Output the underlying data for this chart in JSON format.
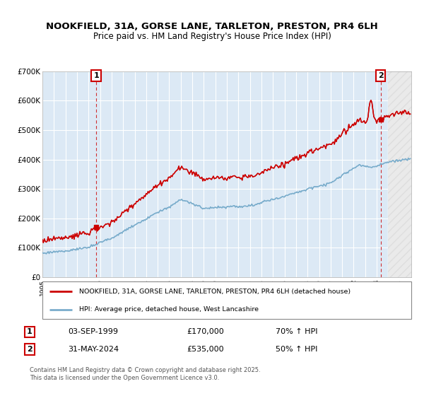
{
  "title": "NOOKFIELD, 31A, GORSE LANE, TARLETON, PRESTON, PR4 6LH",
  "subtitle": "Price paid vs. HM Land Registry's House Price Index (HPI)",
  "title_fontsize": 9.5,
  "subtitle_fontsize": 8.5,
  "sale1_date": "03-SEP-1999",
  "sale1_price": 170000,
  "sale1_label": "1",
  "sale1_hpi": "70% ↑ HPI",
  "sale2_date": "31-MAY-2024",
  "sale2_price": 535000,
  "sale2_label": "2",
  "sale2_hpi": "50% ↑ HPI",
  "red_color": "#cc0000",
  "blue_color": "#7aadcc",
  "bg_color": "#dce9f5",
  "grid_color": "#ffffff",
  "legend_label_red": "NOOKFIELD, 31A, GORSE LANE, TARLETON, PRESTON, PR4 6LH (detached house)",
  "legend_label_blue": "HPI: Average price, detached house, West Lancashire",
  "footer": "Contains HM Land Registry data © Crown copyright and database right 2025.\nThis data is licensed under the Open Government Licence v3.0.",
  "ylim": [
    0,
    700000
  ],
  "yticks": [
    0,
    100000,
    200000,
    300000,
    400000,
    500000,
    600000,
    700000
  ],
  "ytick_labels": [
    "£0",
    "£100K",
    "£200K",
    "£300K",
    "£400K",
    "£500K",
    "£600K",
    "£700K"
  ],
  "xmin": 1995,
  "xmax": 2027
}
